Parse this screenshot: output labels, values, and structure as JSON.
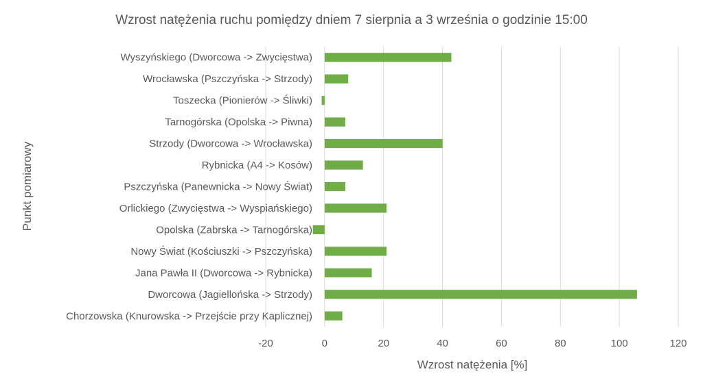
{
  "chart_data": {
    "type": "bar",
    "orientation": "horizontal",
    "title": "Wzrost natężenia ruchu pomiędzy dniem 7 sierpnia a 3 września o godzinie 15:00",
    "xlabel": "Wzrost natężenia [%]",
    "ylabel": "Punkt pomiarowy",
    "xlim": [
      -20,
      120
    ],
    "xticks": [
      -20,
      0,
      20,
      40,
      60,
      80,
      100,
      120
    ],
    "grid": true,
    "legend": "none",
    "bar_color": "#70ad47",
    "categories": [
      "Wyszyńskiego (Dworcowa -> Zwycięstwa)",
      "Wrocławska (Pszczyńska -> Strzody)",
      "Toszecka (Pionierów -> Śliwki)",
      "Tarnogórska (Opolska -> Piwna)",
      "Strzody (Dworcowa -> Wrocławska)",
      "Rybnicka (A4 -> Kosów)",
      "Pszczyńska (Panewnicka -> Nowy Świat)",
      "Orlickiego (Zwycięstwa -> Wyspiańskiego)",
      "Opolska (Zabrska -> Tarnogórska)",
      "Nowy Świat (Kościuszki -> Pszczyńska)",
      "Jana Pawła II (Dworcowa -> Rybnicka)",
      "Dworcowa (Jagiellońska -> Strzody)",
      "Chorzowska (Knurowska -> Przejście przy Kaplicznej)"
    ],
    "values": [
      43,
      8,
      -1,
      7,
      40,
      13,
      7,
      21,
      -4,
      21,
      16,
      106,
      6
    ]
  }
}
